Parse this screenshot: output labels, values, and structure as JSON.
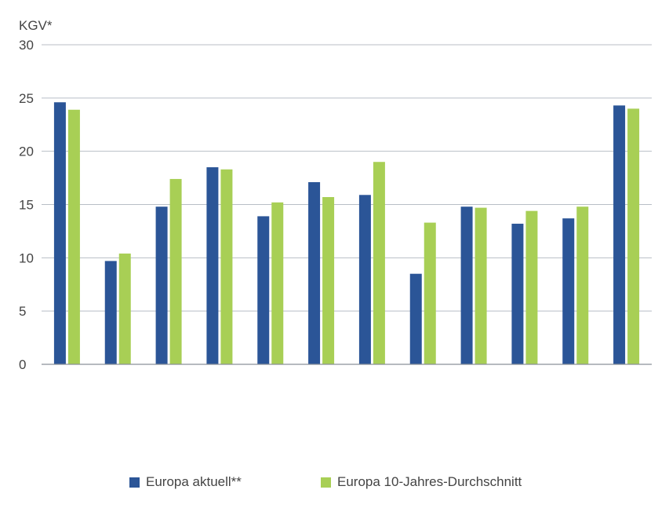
{
  "chart_data": {
    "type": "bar",
    "ylabel": "KGV*",
    "ylim": [
      0,
      30
    ],
    "yticks": [
      0,
      5,
      10,
      15,
      20,
      25,
      30
    ],
    "grid": true,
    "legend_position": "bottom",
    "categories": [
      "",
      "",
      "",
      "",
      "",
      "",
      "",
      "",
      "",
      "",
      "",
      ""
    ],
    "series": [
      {
        "name": "Europa aktuell**",
        "color": "#2b5597",
        "values": [
          24.6,
          9.7,
          14.8,
          18.5,
          13.9,
          17.1,
          15.9,
          8.5,
          14.8,
          13.2,
          13.7,
          24.3
        ]
      },
      {
        "name": "Europa 10-Jahres-Durchschnitt",
        "color": "#a8cf55",
        "values": [
          23.9,
          10.4,
          17.4,
          18.3,
          15.2,
          15.7,
          19.0,
          13.3,
          14.7,
          14.4,
          14.8,
          24.0
        ]
      }
    ]
  }
}
